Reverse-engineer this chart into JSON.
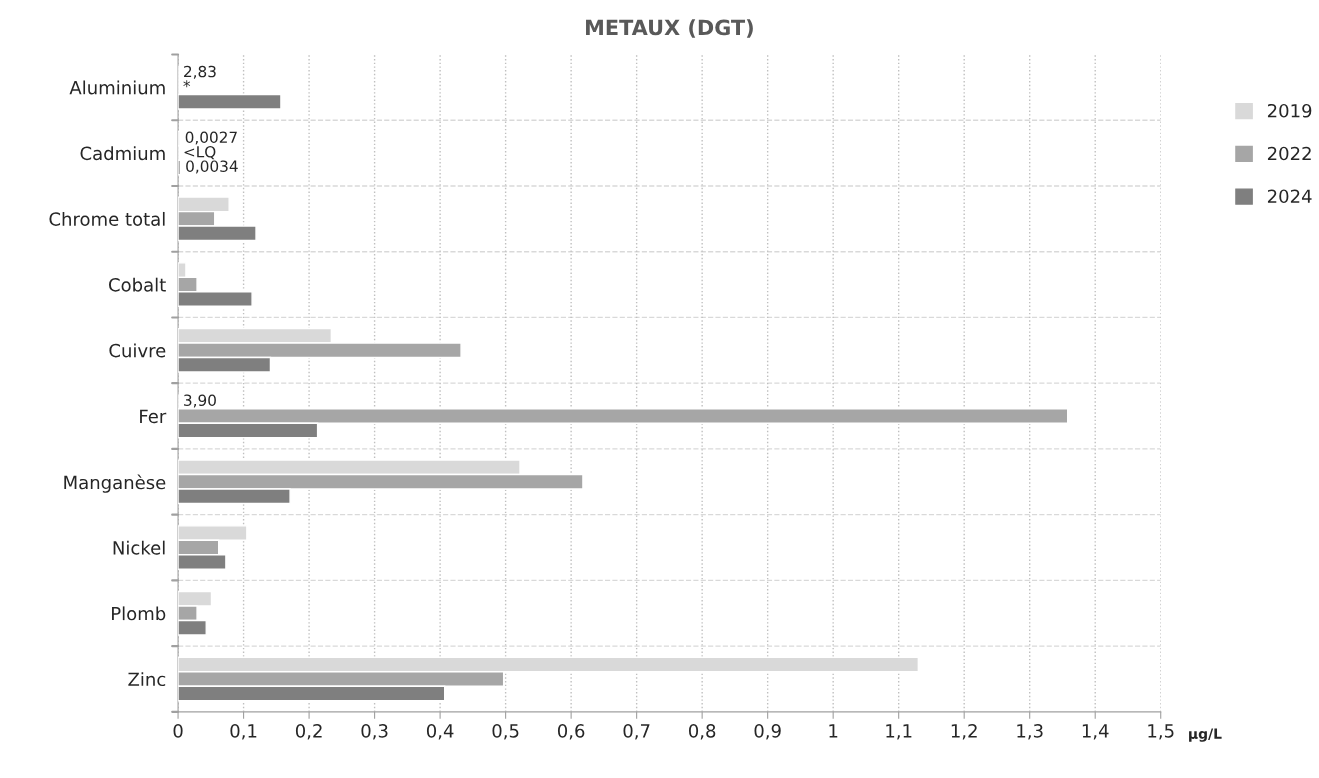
{
  "chart_data": {
    "type": "bar",
    "orientation": "horizontal",
    "title": "METAUX (DGT)",
    "xlabel": "µg/L",
    "categories": [
      "Aluminium",
      "Cadmium",
      "Chrome total",
      "Cobalt",
      "Cuivre",
      "Fer",
      "Manganèse",
      "Nickel",
      "Plomb",
      "Zinc"
    ],
    "series": [
      {
        "name": "2019",
        "color": "#d9d9d9",
        "values": [
          null,
          0.0027,
          0.078,
          0.012,
          0.234,
          null,
          0.522,
          0.105,
          0.051,
          1.13
        ],
        "value_labels": [
          "2,83",
          "0,0027",
          null,
          null,
          null,
          "3,90",
          null,
          null,
          null,
          null
        ]
      },
      {
        "name": "2022",
        "color": "#a6a6a6",
        "values": [
          null,
          null,
          0.056,
          0.029,
          0.432,
          1.358,
          0.618,
          0.062,
          0.029,
          0.497
        ],
        "value_labels": [
          "*",
          "<LQ",
          null,
          null,
          null,
          null,
          null,
          null,
          null,
          null
        ]
      },
      {
        "name": "2024",
        "color": "#7f7f7f",
        "values": [
          0.157,
          0.0034,
          0.119,
          0.113,
          0.141,
          0.213,
          0.171,
          0.073,
          0.043,
          0.407
        ],
        "value_labels": [
          null,
          "0,0034",
          null,
          null,
          null,
          null,
          null,
          null,
          null,
          null
        ]
      }
    ],
    "xlim": [
      0,
      1.5
    ],
    "xticks": [
      0,
      {
        "value": 0.1,
        "label": "0,1"
      },
      {
        "value": 0.2,
        "label": "0,2"
      },
      {
        "value": 0.3,
        "label": "0,3"
      },
      {
        "value": 0.4,
        "label": "0,4"
      },
      {
        "value": 0.5,
        "label": "0,5"
      },
      {
        "value": 0.6,
        "label": "0,6"
      },
      {
        "value": 0.7,
        "label": "0,7"
      },
      {
        "value": 0.8,
        "label": "0,8"
      },
      {
        "value": 0.9,
        "label": "0,9"
      },
      1,
      {
        "value": 1.1,
        "label": "1,1"
      },
      {
        "value": 1.2,
        "label": "1,2"
      },
      {
        "value": 1.3,
        "label": "1,3"
      },
      {
        "value": 1.4,
        "label": "1,4"
      },
      {
        "value": 1.5,
        "label": "1,5"
      }
    ],
    "grid": true,
    "legend": "right"
  }
}
